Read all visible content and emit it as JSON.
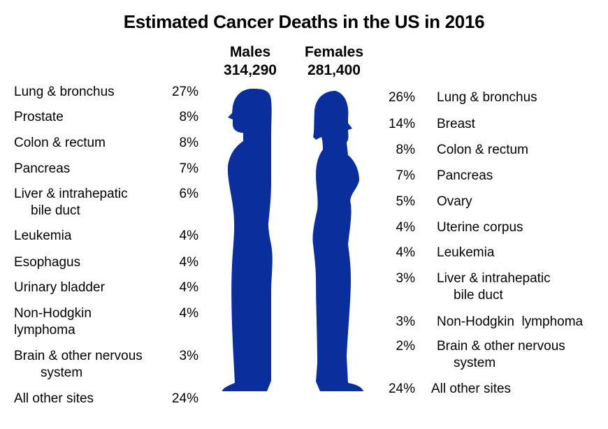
{
  "title": "Estimated Cancer Deaths in the US in 2016",
  "colors": {
    "figure": "#0A2E9B"
  },
  "males": {
    "heading": "Males",
    "total": "314,290",
    "sites": [
      {
        "name": "Lung & bronchus",
        "pct": "27%"
      },
      {
        "name": "Prostate",
        "pct": "8%"
      },
      {
        "name": "Colon & rectum",
        "pct": "8%"
      },
      {
        "name": "Pancreas",
        "pct": "7%"
      },
      {
        "name": "Liver & intrahepatic",
        "name2": "bile duct",
        "pct": "6%"
      },
      {
        "name": "Leukemia",
        "pct": "4%"
      },
      {
        "name": "Esophagus",
        "pct": "4%"
      },
      {
        "name": "Urinary bladder",
        "pct": "4%"
      },
      {
        "name": "Non-Hodgkin",
        "name2": "lymphoma",
        "pct": "4%"
      },
      {
        "name": "Brain & other nervous",
        "name2": "system",
        "pct": "3%"
      },
      {
        "name": "All other sites",
        "pct": "24%"
      }
    ]
  },
  "females": {
    "heading": "Females",
    "total": "281,400",
    "sites": [
      {
        "name": "Lung & bronchus",
        "pct": "26%"
      },
      {
        "name": "Breast",
        "pct": "14%"
      },
      {
        "name": "Colon & rectum",
        "pct": "8%"
      },
      {
        "name": "Pancreas",
        "pct": "7%"
      },
      {
        "name": "Ovary",
        "pct": "5%"
      },
      {
        "name": "Uterine corpus",
        "pct": "4%"
      },
      {
        "name": "Leukemia",
        "pct": "4%"
      },
      {
        "name": "Liver & intrahepatic",
        "name2": "bile duct",
        "pct": "3%"
      },
      {
        "name": "Non-Hodgkin  lymphoma",
        "pct": "3%"
      },
      {
        "name": "Brain & other nervous",
        "name2": "system",
        "pct": "2%"
      },
      {
        "name": "All other sites",
        "pct": "24%"
      }
    ]
  }
}
